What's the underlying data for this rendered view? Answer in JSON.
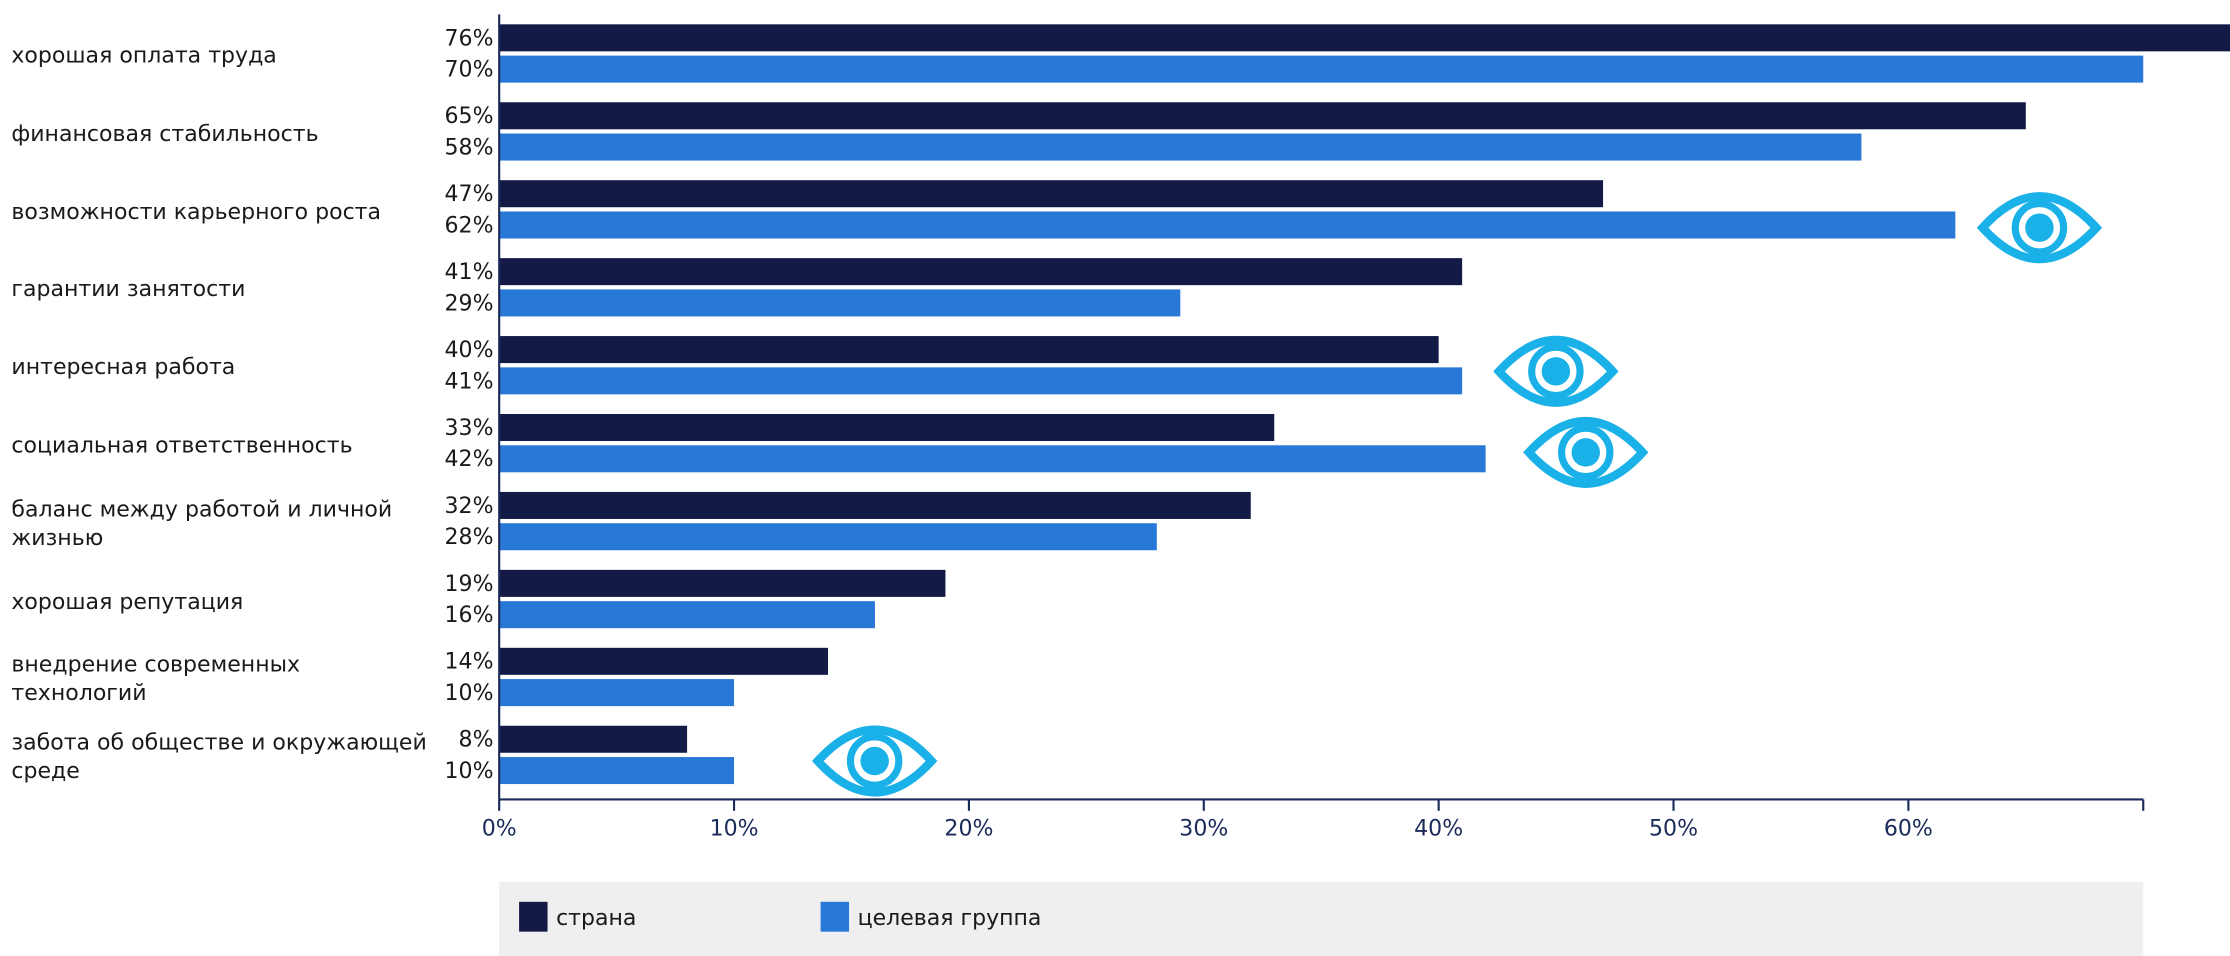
{
  "chart_data": {
    "type": "bar",
    "orientation": "horizontal",
    "categories": [
      "хорошая оплата труда",
      "финансовая стабильность",
      "возможности карьерного роста",
      "гарантии занятости",
      "интересная работа",
      "социальная ответственность",
      "баланс между работой и личной жизнью",
      "хорошая репутация",
      "внедрение современных технологий",
      "забота об обществе и окружающей среде"
    ],
    "series": [
      {
        "name": "страна",
        "color": "#141a46",
        "values": [
          76,
          65,
          47,
          41,
          40,
          33,
          32,
          19,
          14,
          8
        ],
        "value_labels": [
          "76%",
          "65%",
          "47%",
          "41%",
          "40%",
          "33%",
          "32%",
          "19%",
          "14%",
          "8%"
        ]
      },
      {
        "name": "целевая группа",
        "color": "#2878d8",
        "values": [
          70,
          58,
          62,
          29,
          41,
          42,
          28,
          16,
          10,
          10
        ],
        "value_labels": [
          "70%",
          "58%",
          "62%",
          "29%",
          "41%",
          "42%",
          "28%",
          "16%",
          "10%",
          "10%"
        ]
      }
    ],
    "xlim": [
      0,
      70
    ],
    "xticks": [
      {
        "value": 0,
        "label": "0%"
      },
      {
        "value": 10,
        "label": "10%"
      },
      {
        "value": 20,
        "label": "20%"
      },
      {
        "value": 30,
        "label": "30%"
      },
      {
        "value": 40,
        "label": "40%"
      },
      {
        "value": 50,
        "label": "50%"
      },
      {
        "value": 60,
        "label": "60%"
      }
    ],
    "legend": "bottom"
  }
}
